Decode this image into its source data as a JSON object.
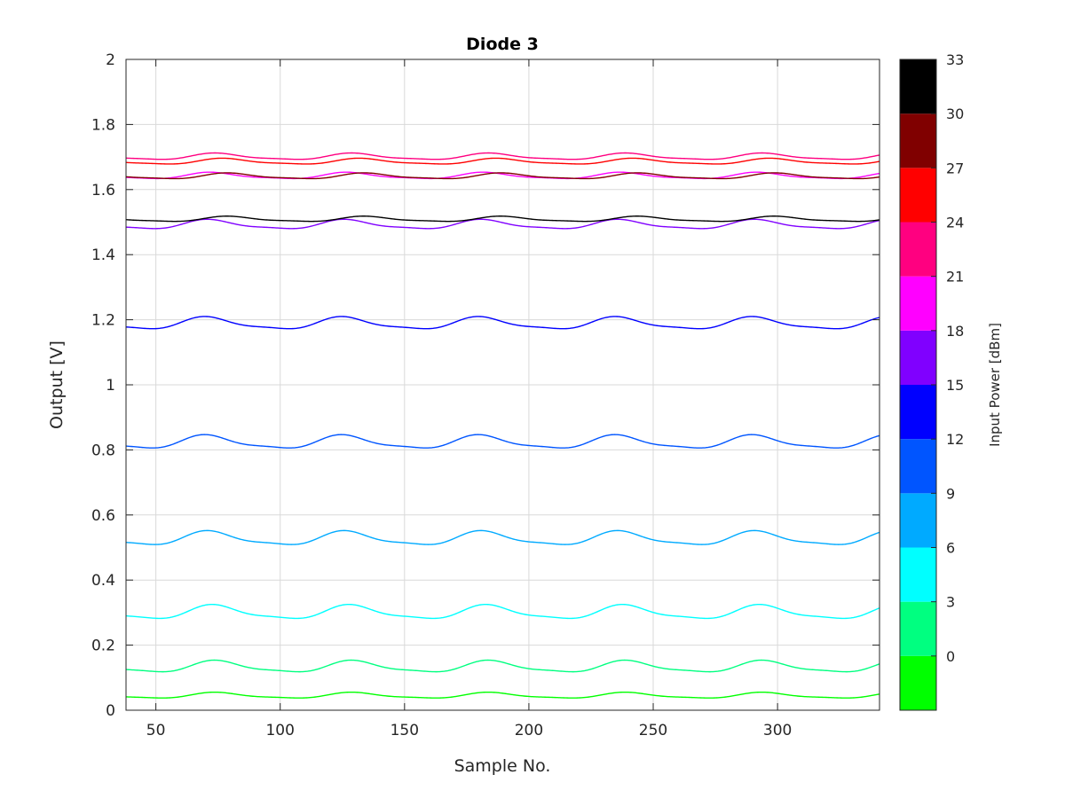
{
  "chart_data": {
    "type": "line",
    "title": "Diode 3",
    "xlabel": "Sample No.",
    "ylabel": "Output [V]",
    "xlim": [
      38,
      341
    ],
    "ylim": [
      0,
      2
    ],
    "xticks": [
      50,
      100,
      150,
      200,
      250,
      300
    ],
    "yticks": [
      0,
      0.2,
      0.4,
      0.6,
      0.8,
      1,
      1.2,
      1.4,
      1.6,
      1.8,
      2
    ],
    "xtick_labels": [
      "50",
      "100",
      "150",
      "200",
      "250",
      "300"
    ],
    "ytick_labels": [
      "0",
      "0.2",
      "0.4",
      "0.6",
      "0.8",
      "1",
      "1.2",
      "1.4",
      "1.6",
      "1.8",
      "2"
    ],
    "grid": true,
    "x_range": [
      38,
      341
    ],
    "period": 55,
    "series": [
      {
        "input_power_dbm": -3,
        "color": "#00ff00",
        "mean": 0.045,
        "amplitude": 0.01,
        "phase": 75,
        "values_min_max": [
          0.035,
          0.055
        ]
      },
      {
        "input_power_dbm": 0,
        "color": "#00ff80",
        "mean": 0.133,
        "amplitude": 0.02,
        "phase": 75,
        "values_min_max": [
          0.113,
          0.153
        ]
      },
      {
        "input_power_dbm": 3,
        "color": "#00ffff",
        "mean": 0.3,
        "amplitude": 0.024,
        "phase": 74,
        "values_min_max": [
          0.276,
          0.324
        ]
      },
      {
        "input_power_dbm": 6,
        "color": "#00aaff",
        "mean": 0.527,
        "amplitude": 0.024,
        "phase": 72,
        "values_min_max": [
          0.503,
          0.551
        ]
      },
      {
        "input_power_dbm": 9,
        "color": "#0055ff",
        "mean": 0.823,
        "amplitude": 0.023,
        "phase": 71,
        "values_min_max": [
          0.8,
          0.846
        ]
      },
      {
        "input_power_dbm": 12,
        "color": "#0000ff",
        "mean": 1.188,
        "amplitude": 0.021,
        "phase": 71,
        "values_min_max": [
          1.167,
          1.209
        ]
      },
      {
        "input_power_dbm": 15,
        "color": "#8000ff",
        "mean": 1.492,
        "amplitude": 0.016,
        "phase": 72,
        "values_min_max": [
          1.476,
          1.508
        ]
      },
      {
        "input_power_dbm": 18,
        "color": "#ff00ff",
        "mean": 1.642,
        "amplitude": 0.011,
        "phase": 73,
        "values_min_max": [
          1.631,
          1.653
        ]
      },
      {
        "input_power_dbm": 21,
        "color": "#ff0080",
        "mean": 1.701,
        "amplitude": 0.011,
        "phase": 75,
        "values_min_max": [
          1.69,
          1.712
        ]
      },
      {
        "input_power_dbm": 24,
        "color": "#ff0000",
        "mean": 1.686,
        "amplitude": 0.01,
        "phase": 78,
        "values_min_max": [
          1.676,
          1.696
        ]
      },
      {
        "input_power_dbm": 27,
        "color": "#800000",
        "mean": 1.641,
        "amplitude": 0.01,
        "phase": 80,
        "values_min_max": [
          1.631,
          1.651
        ]
      },
      {
        "input_power_dbm": 30,
        "color": "#000000",
        "mean": 1.509,
        "amplitude": 0.009,
        "phase": 80,
        "values_min_max": [
          1.5,
          1.518
        ]
      }
    ],
    "colorbar": {
      "label": "Input Power [dBm]",
      "range": [
        -3,
        33
      ],
      "tick_labels": [
        "0",
        "3",
        "6",
        "9",
        "12",
        "15",
        "18",
        "21",
        "24",
        "27",
        "30",
        "33"
      ],
      "tick_values": [
        0,
        3,
        6,
        9,
        12,
        15,
        18,
        21,
        24,
        27,
        30,
        33
      ],
      "segments": [
        {
          "from": -3,
          "to": 0,
          "color": "#00ff00"
        },
        {
          "from": 0,
          "to": 3,
          "color": "#00ff80"
        },
        {
          "from": 3,
          "to": 6,
          "color": "#00ffff"
        },
        {
          "from": 6,
          "to": 9,
          "color": "#00aaff"
        },
        {
          "from": 9,
          "to": 12,
          "color": "#0055ff"
        },
        {
          "from": 12,
          "to": 15,
          "color": "#0000ff"
        },
        {
          "from": 15,
          "to": 18,
          "color": "#8000ff"
        },
        {
          "from": 18,
          "to": 21,
          "color": "#ff00ff"
        },
        {
          "from": 21,
          "to": 24,
          "color": "#ff0080"
        },
        {
          "from": 24,
          "to": 27,
          "color": "#ff0000"
        },
        {
          "from": 27,
          "to": 30,
          "color": "#800000"
        },
        {
          "from": 30,
          "to": 33,
          "color": "#000000"
        }
      ]
    }
  }
}
